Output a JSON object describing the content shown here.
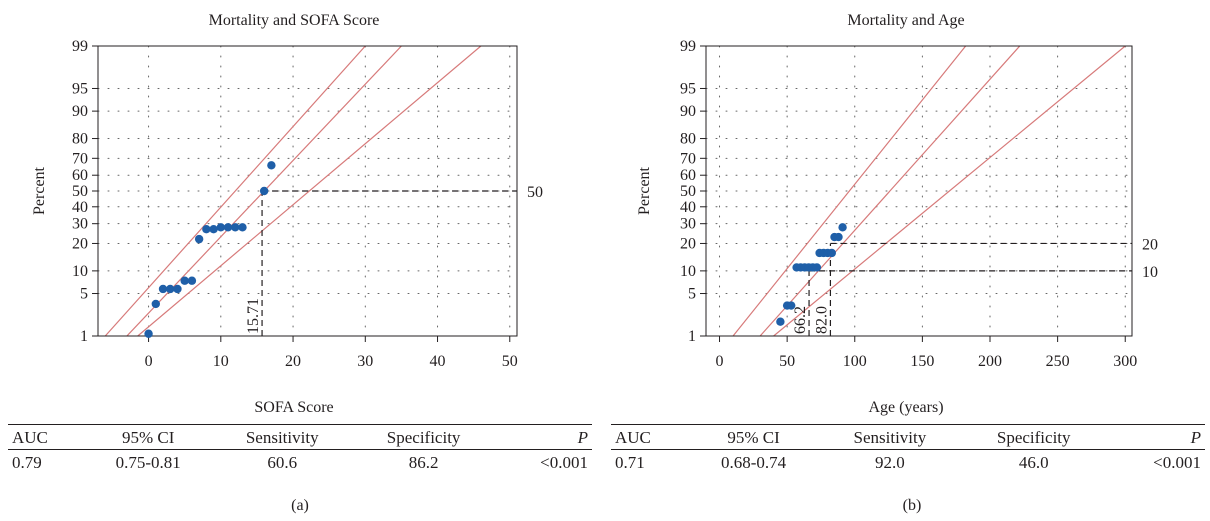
{
  "chart_data": [
    {
      "type": "scatter",
      "panel": "(a)",
      "title": "Mortality and SOFA Score",
      "xlabel": "SOFA Score",
      "ylabel": "Percent",
      "x_scale": "linear",
      "y_scale": "probability",
      "xlim": [
        -7,
        51
      ],
      "xticks": [
        0,
        10,
        20,
        30,
        40,
        50
      ],
      "yticks": [
        1,
        5,
        10,
        20,
        30,
        40,
        50,
        60,
        70,
        80,
        90,
        95,
        99
      ],
      "grid": "dotted",
      "points": [
        {
          "x": 0,
          "y": 1.1
        },
        {
          "x": 1,
          "y": 3.5
        },
        {
          "x": 2,
          "y": 5.8
        },
        {
          "x": 3,
          "y": 5.8
        },
        {
          "x": 4,
          "y": 5.8
        },
        {
          "x": 5,
          "y": 7.5
        },
        {
          "x": 6,
          "y": 7.5
        },
        {
          "x": 7,
          "y": 22
        },
        {
          "x": 8,
          "y": 27
        },
        {
          "x": 9,
          "y": 27
        },
        {
          "x": 10,
          "y": 28
        },
        {
          "x": 11,
          "y": 28
        },
        {
          "x": 12,
          "y": 28
        },
        {
          "x": 13,
          "y": 28
        },
        {
          "x": 16,
          "y": 50
        },
        {
          "x": 17,
          "y": 66
        }
      ],
      "fit_lines": [
        {
          "x1": -6,
          "y1": 1,
          "x2": 30,
          "y2": 99
        },
        {
          "x1": -3,
          "y1": 1,
          "x2": 35,
          "y2": 99
        },
        {
          "x1": -1.5,
          "y1": 1,
          "x2": 46,
          "y2": 99
        }
      ],
      "cutoff": {
        "x": 15.71,
        "y": 50,
        "x_label": "15.71",
        "y_label": "50"
      },
      "stats": {
        "headers": [
          "AUC",
          "95% CI",
          "Sensitivity",
          "Specificity",
          "P"
        ],
        "values": [
          "0.79",
          "0.75-0.81",
          "60.6",
          "86.2",
          "<0.001"
        ]
      }
    },
    {
      "type": "scatter",
      "panel": "(b)",
      "title": "Mortality and Age",
      "xlabel": "Age (years)",
      "ylabel": "Percent",
      "x_scale": "linear",
      "y_scale": "probability",
      "xlim": [
        -10,
        305
      ],
      "xticks": [
        0,
        50,
        100,
        150,
        200,
        250,
        300
      ],
      "yticks": [
        1,
        5,
        10,
        20,
        30,
        40,
        50,
        60,
        70,
        80,
        90,
        95,
        99
      ],
      "grid": "dotted",
      "points": [
        {
          "x": 45,
          "y": 1.8
        },
        {
          "x": 50,
          "y": 3.3
        },
        {
          "x": 53,
          "y": 3.3
        },
        {
          "x": 57,
          "y": 11
        },
        {
          "x": 60,
          "y": 11
        },
        {
          "x": 63,
          "y": 11
        },
        {
          "x": 66,
          "y": 11
        },
        {
          "x": 69,
          "y": 11
        },
        {
          "x": 72,
          "y": 11
        },
        {
          "x": 74,
          "y": 16
        },
        {
          "x": 77,
          "y": 16
        },
        {
          "x": 80,
          "y": 16
        },
        {
          "x": 83,
          "y": 16
        },
        {
          "x": 85,
          "y": 23
        },
        {
          "x": 88,
          "y": 23
        },
        {
          "x": 91,
          "y": 28
        }
      ],
      "fit_lines": [
        {
          "x1": 10,
          "y1": 1,
          "x2": 182,
          "y2": 99
        },
        {
          "x1": 30,
          "y1": 1,
          "x2": 222,
          "y2": 99
        },
        {
          "x1": 40,
          "y1": 1,
          "x2": 300,
          "y2": 99
        }
      ],
      "cutoffs": [
        {
          "x": 66.2,
          "y": 10,
          "x_label": "66.2",
          "y_label": "10"
        },
        {
          "x": 82.0,
          "y": 20,
          "x_label": "82.0",
          "y_label": "20"
        }
      ],
      "stats": {
        "headers": [
          "AUC",
          "95% CI",
          "Sensitivity",
          "Specificity",
          "P"
        ],
        "values": [
          "0.71",
          "0.68-0.74",
          "92.0",
          "46.0",
          "<0.001"
        ]
      }
    }
  ],
  "colors": {
    "points": "#1f5fa8",
    "fit_lines": "#d77a7a",
    "text": "#231f20",
    "grid": "#666666"
  }
}
